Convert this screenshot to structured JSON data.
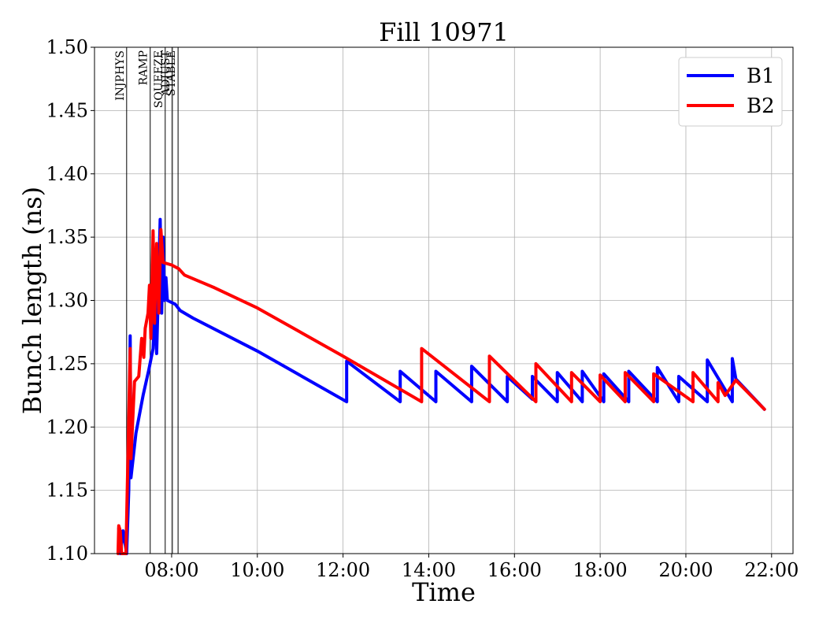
{
  "chart_data": {
    "type": "line",
    "title": "Fill 10971",
    "xlabel": "Time",
    "ylabel": "Bunch length (ns)",
    "xlim": [
      "06:12",
      "22:30"
    ],
    "ylim": [
      1.1,
      1.5
    ],
    "grid": true,
    "legend_position": "top-right",
    "x_ticks": [
      "08:00",
      "10:00",
      "12:00",
      "14:00",
      "16:00",
      "18:00",
      "20:00",
      "22:00"
    ],
    "y_ticks": [
      "1.10",
      "1.15",
      "1.20",
      "1.25",
      "1.30",
      "1.35",
      "1.40",
      "1.45",
      "1.50"
    ],
    "phases": [
      {
        "label": "INJPHYS",
        "time": "06:57"
      },
      {
        "label": "RAMP",
        "time": "07:30"
      },
      {
        "label": "SQUEEZE",
        "time": "07:51"
      },
      {
        "label": "ADJUST",
        "time": "08:01"
      },
      {
        "label": "STABLE",
        "time": "08:09"
      }
    ],
    "series": [
      {
        "name": "B1",
        "color": "#0000ff",
        "points": [
          [
            "06:46",
            1.12
          ],
          [
            "06:48",
            1.1
          ],
          [
            "06:52",
            1.118
          ],
          [
            "06:57",
            1.1
          ],
          [
            "07:00",
            1.15
          ],
          [
            "07:02",
            1.272
          ],
          [
            "07:03",
            1.16
          ],
          [
            "07:10",
            1.195
          ],
          [
            "07:20",
            1.225
          ],
          [
            "07:28",
            1.245
          ],
          [
            "07:34",
            1.262
          ],
          [
            "07:37",
            1.3
          ],
          [
            "07:39",
            1.258
          ],
          [
            "07:42",
            1.32
          ],
          [
            "07:44",
            1.364
          ],
          [
            "07:46",
            1.29
          ],
          [
            "07:48",
            1.35
          ],
          [
            "07:50",
            1.3
          ],
          [
            "07:52",
            1.318
          ],
          [
            "07:54",
            1.3
          ],
          [
            "08:05",
            1.297
          ],
          [
            "08:12",
            1.292
          ],
          [
            "08:30",
            1.286
          ],
          [
            "10:00",
            1.26
          ],
          [
            "12:05",
            1.22
          ],
          [
            "12:05",
            1.252
          ],
          [
            "13:20",
            1.22
          ],
          [
            "13:20",
            1.244
          ],
          [
            "14:10",
            1.22
          ],
          [
            "14:10",
            1.244
          ],
          [
            "15:00",
            1.22
          ],
          [
            "15:00",
            1.248
          ],
          [
            "15:50",
            1.22
          ],
          [
            "15:50",
            1.24
          ],
          [
            "16:25",
            1.222
          ],
          [
            "16:25",
            1.24
          ],
          [
            "17:00",
            1.22
          ],
          [
            "17:00",
            1.243
          ],
          [
            "17:35",
            1.22
          ],
          [
            "17:35",
            1.244
          ],
          [
            "18:05",
            1.22
          ],
          [
            "18:05",
            1.242
          ],
          [
            "18:40",
            1.22
          ],
          [
            "18:40",
            1.244
          ],
          [
            "19:20",
            1.22
          ],
          [
            "19:20",
            1.247
          ],
          [
            "19:50",
            1.22
          ],
          [
            "19:50",
            1.24
          ],
          [
            "20:30",
            1.22
          ],
          [
            "20:30",
            1.253
          ],
          [
            "21:05",
            1.22
          ],
          [
            "21:05",
            1.254
          ],
          [
            "21:10",
            1.238
          ],
          [
            "21:50",
            1.214
          ]
        ]
      },
      {
        "name": "B2",
        "color": "#ff0000",
        "points": [
          [
            "06:45",
            1.1
          ],
          [
            "06:46",
            1.122
          ],
          [
            "06:48",
            1.118
          ],
          [
            "06:50",
            1.1
          ],
          [
            "06:56",
            1.1
          ],
          [
            "06:59",
            1.18
          ],
          [
            "07:02",
            1.262
          ],
          [
            "07:03",
            1.175
          ],
          [
            "07:08",
            1.236
          ],
          [
            "07:14",
            1.24
          ],
          [
            "07:18",
            1.27
          ],
          [
            "07:21",
            1.255
          ],
          [
            "07:23",
            1.278
          ],
          [
            "07:27",
            1.29
          ],
          [
            "07:29",
            1.312
          ],
          [
            "07:31",
            1.27
          ],
          [
            "07:34",
            1.355
          ],
          [
            "07:36",
            1.282
          ],
          [
            "07:39",
            1.345
          ],
          [
            "07:42",
            1.29
          ],
          [
            "07:45",
            1.356
          ],
          [
            "07:48",
            1.33
          ],
          [
            "08:00",
            1.328
          ],
          [
            "08:10",
            1.325
          ],
          [
            "08:18",
            1.32
          ],
          [
            "09:00",
            1.31
          ],
          [
            "10:00",
            1.294
          ],
          [
            "12:00",
            1.256
          ],
          [
            "13:50",
            1.22
          ],
          [
            "13:50",
            1.262
          ],
          [
            "15:25",
            1.22
          ],
          [
            "15:25",
            1.256
          ],
          [
            "16:30",
            1.22
          ],
          [
            "16:30",
            1.25
          ],
          [
            "17:20",
            1.22
          ],
          [
            "17:20",
            1.243
          ],
          [
            "18:00",
            1.22
          ],
          [
            "18:00",
            1.241
          ],
          [
            "18:35",
            1.22
          ],
          [
            "18:35",
            1.243
          ],
          [
            "19:15",
            1.22
          ],
          [
            "19:15",
            1.242
          ],
          [
            "20:10",
            1.22
          ],
          [
            "20:10",
            1.243
          ],
          [
            "20:45",
            1.22
          ],
          [
            "20:45",
            1.235
          ],
          [
            "20:55",
            1.225
          ],
          [
            "21:10",
            1.237
          ],
          [
            "21:50",
            1.214
          ]
        ]
      }
    ]
  }
}
